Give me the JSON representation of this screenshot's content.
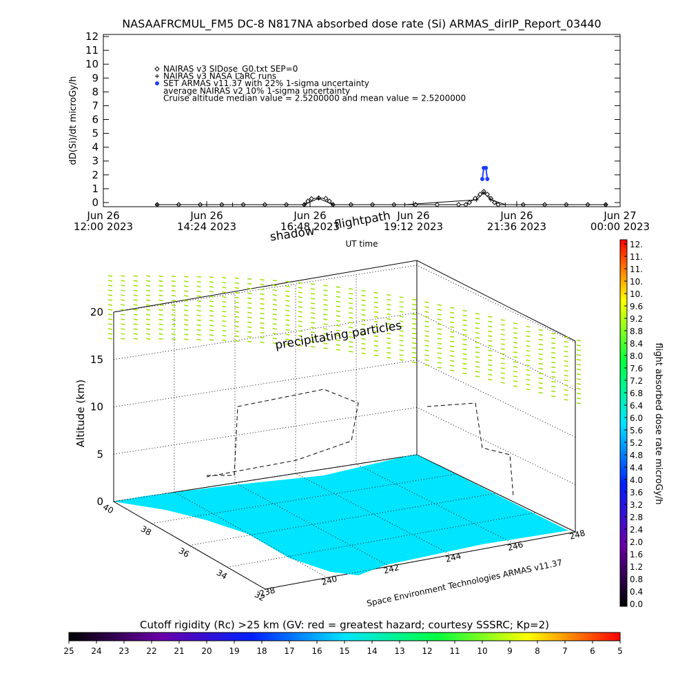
{
  "chart_data": [
    {
      "type": "line",
      "title": "NASAAFRCMUL_FM5 DC-8   N817NA absorbed dose rate (Si) ARMAS_dirIP_Report_03440",
      "ylabel": "dD(Si)/dt microGy/h",
      "xlabel": "UT time",
      "xlim": [
        "2023-06-26T12:00",
        "2023-06-27T00:00"
      ],
      "xticks": [
        {
          "value": "2023-06-26T12:00",
          "label": "Jun 26\n12:00 2023"
        },
        {
          "value": "2023-06-26T14:24",
          "label": "Jun 26\n14:24 2023"
        },
        {
          "value": "2023-06-26T16:48",
          "label": "Jun 26\n16:48 2023"
        },
        {
          "value": "2023-06-26T19:12",
          "label": "Jun 26\n19:12 2023"
        },
        {
          "value": "2023-06-26T21:36",
          "label": "Jun 26\n21:36 2023"
        },
        {
          "value": "2023-06-27T00:00",
          "label": "Jun 27\n00:00 2023"
        }
      ],
      "ylim": [
        -0.3,
        12.15
      ],
      "yticks": [
        0,
        1,
        2,
        3,
        4,
        5,
        6,
        7,
        8,
        9,
        10,
        11,
        12
      ],
      "series": [
        {
          "name": "NAIRAS v3 SIDose_G0.txt SEP=0",
          "color": "#000000",
          "marker": "diamond",
          "x": [
            "2023-06-26T13:15",
            "2023-06-26T13:45",
            "2023-06-26T14:15",
            "2023-06-26T14:45",
            "2023-06-26T15:15",
            "2023-06-26T15:45",
            "2023-06-26T16:15",
            "2023-06-26T16:40",
            "2023-06-26T16:45",
            "2023-06-26T16:50",
            "2023-06-26T17:00",
            "2023-06-26T17:10",
            "2023-06-26T17:15",
            "2023-06-26T17:20",
            "2023-06-26T17:45",
            "2023-06-26T18:15",
            "2023-06-26T18:45",
            "2023-06-26T19:15",
            "2023-06-26T19:45",
            "2023-06-26T20:15",
            "2023-06-26T20:25",
            "2023-06-26T20:30",
            "2023-06-26T20:38",
            "2023-06-26T20:45",
            "2023-06-26T20:50",
            "2023-06-26T20:55",
            "2023-06-26T21:00",
            "2023-06-26T21:05",
            "2023-06-26T21:10",
            "2023-06-26T21:45",
            "2023-06-26T22:15",
            "2023-06-26T22:45",
            "2023-06-26T23:15",
            "2023-06-26T23:40"
          ],
          "values": [
            -0.15,
            -0.15,
            -0.15,
            -0.15,
            -0.15,
            -0.15,
            -0.15,
            -0.15,
            0.1,
            0.28,
            0.33,
            0.3,
            0.1,
            -0.15,
            -0.15,
            -0.15,
            -0.15,
            -0.15,
            -0.15,
            -0.15,
            -0.15,
            0.0,
            0.3,
            0.6,
            0.8,
            0.6,
            0.3,
            0.0,
            -0.15,
            -0.15,
            -0.15,
            -0.15,
            -0.15,
            -0.15
          ]
        },
        {
          "name": "NAIRAS v3 NASA LaRC runs",
          "color": "#000000",
          "marker": "plus",
          "x": [
            "2023-06-26T13:15",
            "2023-06-26T15:00",
            "2023-06-26T16:40",
            "2023-06-26T17:00",
            "2023-06-26T17:20",
            "2023-06-26T19:00",
            "2023-06-26T20:40",
            "2023-06-26T20:50",
            "2023-06-26T21:00",
            "2023-06-26T21:20",
            "2023-06-26T23:40"
          ],
          "values": [
            -0.15,
            -0.15,
            -0.15,
            0.3,
            -0.15,
            -0.15,
            0.2,
            0.7,
            0.2,
            -0.15,
            -0.15
          ]
        },
        {
          "name": "SET ARMAS v11.37 with 22% 1-sigma uncertainty",
          "color": "#1f3fff",
          "marker": "dot",
          "x": [
            "2023-06-26T20:48",
            "2023-06-26T20:50",
            "2023-06-26T20:53",
            "2023-06-26T20:55"
          ],
          "values": [
            1.7,
            2.5,
            2.5,
            1.7
          ]
        }
      ],
      "annotations": [
        "average NAIRAS v2 10% 1-sigma uncertainty",
        "Cruise altitude median value = 2.5200000 and mean value = 2.5200000"
      ]
    },
    {
      "type": "map3d",
      "zlabel": "Altitude (km)",
      "zlim": [
        0,
        20
      ],
      "zticks": [
        0,
        5,
        10,
        15,
        20
      ],
      "xlim": [
        238,
        248
      ],
      "xticks": [
        238,
        240,
        242,
        244,
        246,
        248
      ],
      "ylim": [
        32,
        40
      ],
      "yticks": [
        40,
        38,
        36,
        34,
        32
      ],
      "annotations": [
        "shadow",
        "flightpath",
        "precipitating particles"
      ],
      "credit": "Space Environment Technologies ARMAS v11.37"
    },
    {
      "type": "colorbar",
      "orientation": "vertical",
      "label": "flight absorbed dose rate microGy/h",
      "colors": [
        "#000000",
        "#6a00a8",
        "#0020ff",
        "#00e5ff",
        "#00ff40",
        "#ffff00",
        "#ff0000"
      ],
      "lim": [
        0,
        11.6
      ],
      "ticks": [
        {
          "value": 0,
          "label": "0.0"
        },
        0.4,
        0.8,
        1.2,
        1.6,
        {
          "value": 2,
          "label": "2.0"
        },
        2.4,
        2.8,
        3.2,
        3.6,
        {
          "value": 4,
          "label": "4.0"
        },
        4.4,
        4.8,
        5.2,
        5.6,
        {
          "value": 6,
          "label": "6.0"
        },
        6.4,
        6.8,
        7.2,
        7.6,
        {
          "value": 8,
          "label": "8.0"
        },
        8.4,
        8.8,
        9.2,
        9.6,
        {
          "value": 10,
          "label": "10."
        },
        {
          "value": 10.4,
          "label": "10."
        },
        {
          "value": 10.8,
          "label": "11."
        },
        {
          "value": 11.2,
          "label": "11."
        },
        {
          "value": 11.6,
          "label": "12."
        }
      ]
    },
    {
      "type": "colorbar",
      "orientation": "horizontal",
      "title": "Cutoff rigidity (Rc) >25 km (GV: red = greatest hazard; courtesy SSSRC; Kp=2)",
      "colors": [
        "#000000",
        "#6a00a8",
        "#0020ff",
        "#00e5ff",
        "#00ff40",
        "#ffff00",
        "#ff0000"
      ],
      "lim": [
        25,
        5
      ],
      "ticks": [
        25,
        24,
        23,
        22,
        21,
        20,
        19,
        18,
        17,
        16,
        15,
        14,
        13,
        12,
        11,
        10,
        9,
        8,
        7,
        6,
        5
      ]
    }
  ]
}
